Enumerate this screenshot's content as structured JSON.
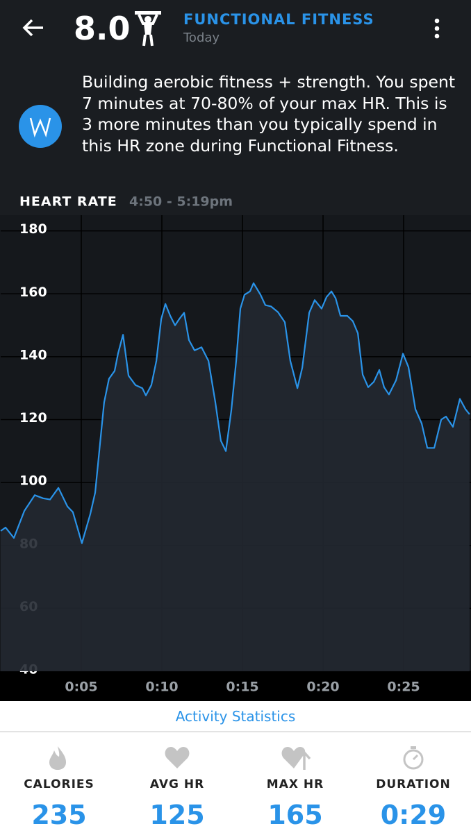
{
  "header": {
    "score": "8.0",
    "title": "FUNCTIONAL FITNESS",
    "subtitle": "Today"
  },
  "insight": "Building aerobic fitness + strength. You spent 7 minutes at 70-80% of your max HR. This is 3 more minutes than you typically spend in this HR zone during Functional Fitness.",
  "chart_data": {
    "type": "line",
    "title": "HEART RATE",
    "subtitle": "4:50 - 5:19pm",
    "x": [
      0,
      0.3,
      0.82,
      1.47,
      2.11,
      2.63,
      3.06,
      3.58,
      4.14,
      4.48,
      5.04,
      5.56,
      5.86,
      6.42,
      6.72,
      7.07,
      7.28,
      7.59,
      7.93,
      8.36,
      8.79,
      9.01,
      9.35,
      9.66,
      9.96,
      10.22,
      10.52,
      10.82,
      11.08,
      11.38,
      11.68,
      12.03,
      12.46,
      12.89,
      13.32,
      13.66,
      13.97,
      14.31,
      14.61,
      14.87,
      15.13,
      15.47,
      15.69,
      16.12,
      16.42,
      16.77,
      17.2,
      17.63,
      17.97,
      18.41,
      18.71,
      19.14,
      19.48,
      19.91,
      20.22,
      20.52,
      20.78,
      21.08,
      21.51,
      21.85,
      22.16,
      22.46,
      22.8,
      23.15,
      23.49,
      23.79,
      24.09,
      24.53,
      24.96,
      25.3,
      25.73,
      26.12,
      26.47,
      26.9,
      27.33,
      27.63,
      28.06,
      28.49,
      28.84,
      29.09
    ],
    "series": [
      {
        "color": "#2a93e8",
        "values": [
          84.6,
          85.7,
          82.4,
          91,
          96,
          95,
          94.6,
          98.3,
          92.4,
          90.6,
          80.7,
          90,
          96.8,
          125.5,
          133,
          135.5,
          141,
          147,
          134,
          131,
          130,
          127.7,
          131,
          138.7,
          152,
          156.8,
          153,
          150,
          152,
          154,
          145.3,
          142,
          143,
          138.7,
          125.5,
          113.3,
          110,
          123,
          138.7,
          155.3,
          159.7,
          160.8,
          163.4,
          159.7,
          156.4,
          156,
          154.2,
          151,
          138.7,
          130,
          136.5,
          154,
          158,
          155.3,
          159,
          160.8,
          158.6,
          153,
          153,
          151.3,
          147.5,
          134.3,
          130.3,
          132,
          135.8,
          130.3,
          128,
          132.5,
          141,
          136.7,
          123.3,
          118.8,
          111,
          111,
          120,
          121,
          117.7,
          126.6,
          123.3,
          121.7
        ]
      }
    ],
    "xlim": [
      0,
      29.18
    ],
    "ylim": [
      40,
      185
    ],
    "xticks": [
      {
        "value": 5,
        "label": "0:05"
      },
      {
        "value": 10,
        "label": "0:10"
      },
      {
        "value": 15,
        "label": "0:15"
      },
      {
        "value": 20,
        "label": "0:20"
      },
      {
        "value": 25,
        "label": "0:25"
      }
    ],
    "yticks": [
      40,
      60,
      80,
      100,
      120,
      140,
      160,
      180
    ],
    "grid": true
  },
  "section_title": "Activity Statistics",
  "stats": [
    {
      "label": "CALORIES",
      "value": "235"
    },
    {
      "label": "AVG HR",
      "value": "125"
    },
    {
      "label": "MAX HR",
      "value": "165"
    },
    {
      "label": "DURATION",
      "value": "0:29"
    }
  ]
}
